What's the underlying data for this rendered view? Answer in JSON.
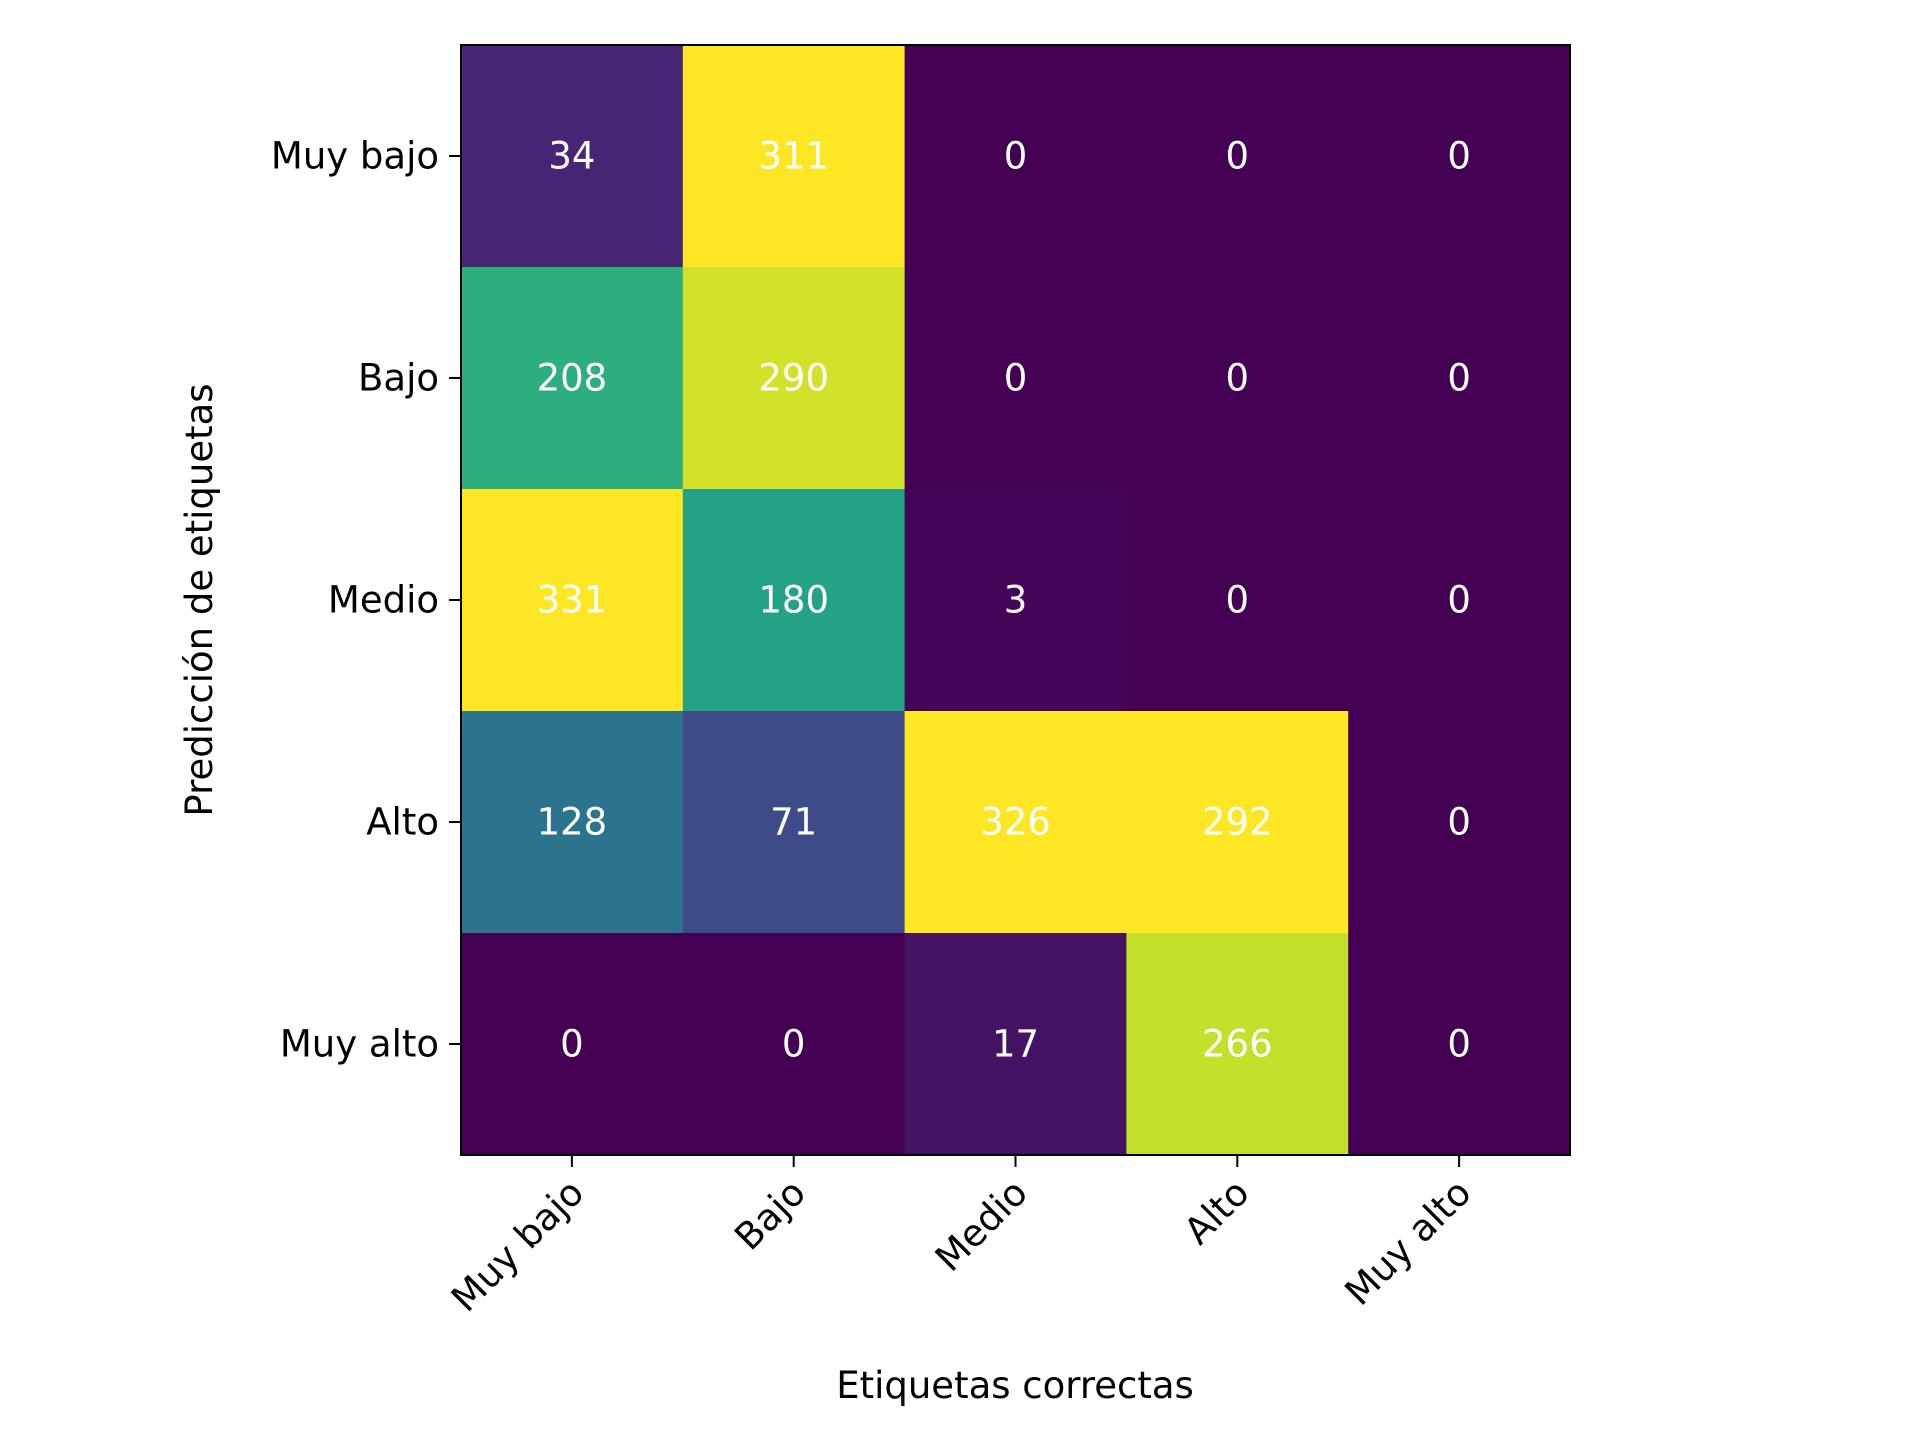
{
  "chart_data": {
    "type": "heatmap",
    "title": "",
    "xlabel": "Etiquetas correctas",
    "ylabel": "Predicción de etiquetas",
    "x_categories": [
      "Muy bajo",
      "Bajo",
      "Medio",
      "Alto",
      "Muy alto"
    ],
    "y_categories": [
      "Muy bajo",
      "Bajo",
      "Medio",
      "Alto",
      "Muy alto"
    ],
    "values": [
      [
        34,
        311,
        0,
        0,
        0
      ],
      [
        208,
        290,
        0,
        0,
        0
      ],
      [
        331,
        180,
        3,
        0,
        0
      ],
      [
        128,
        71,
        326,
        292,
        0
      ],
      [
        0,
        0,
        17,
        266,
        0
      ]
    ],
    "colormap": "viridis",
    "cell_label_color": "#ffffff",
    "grid": false,
    "legend": "none"
  }
}
